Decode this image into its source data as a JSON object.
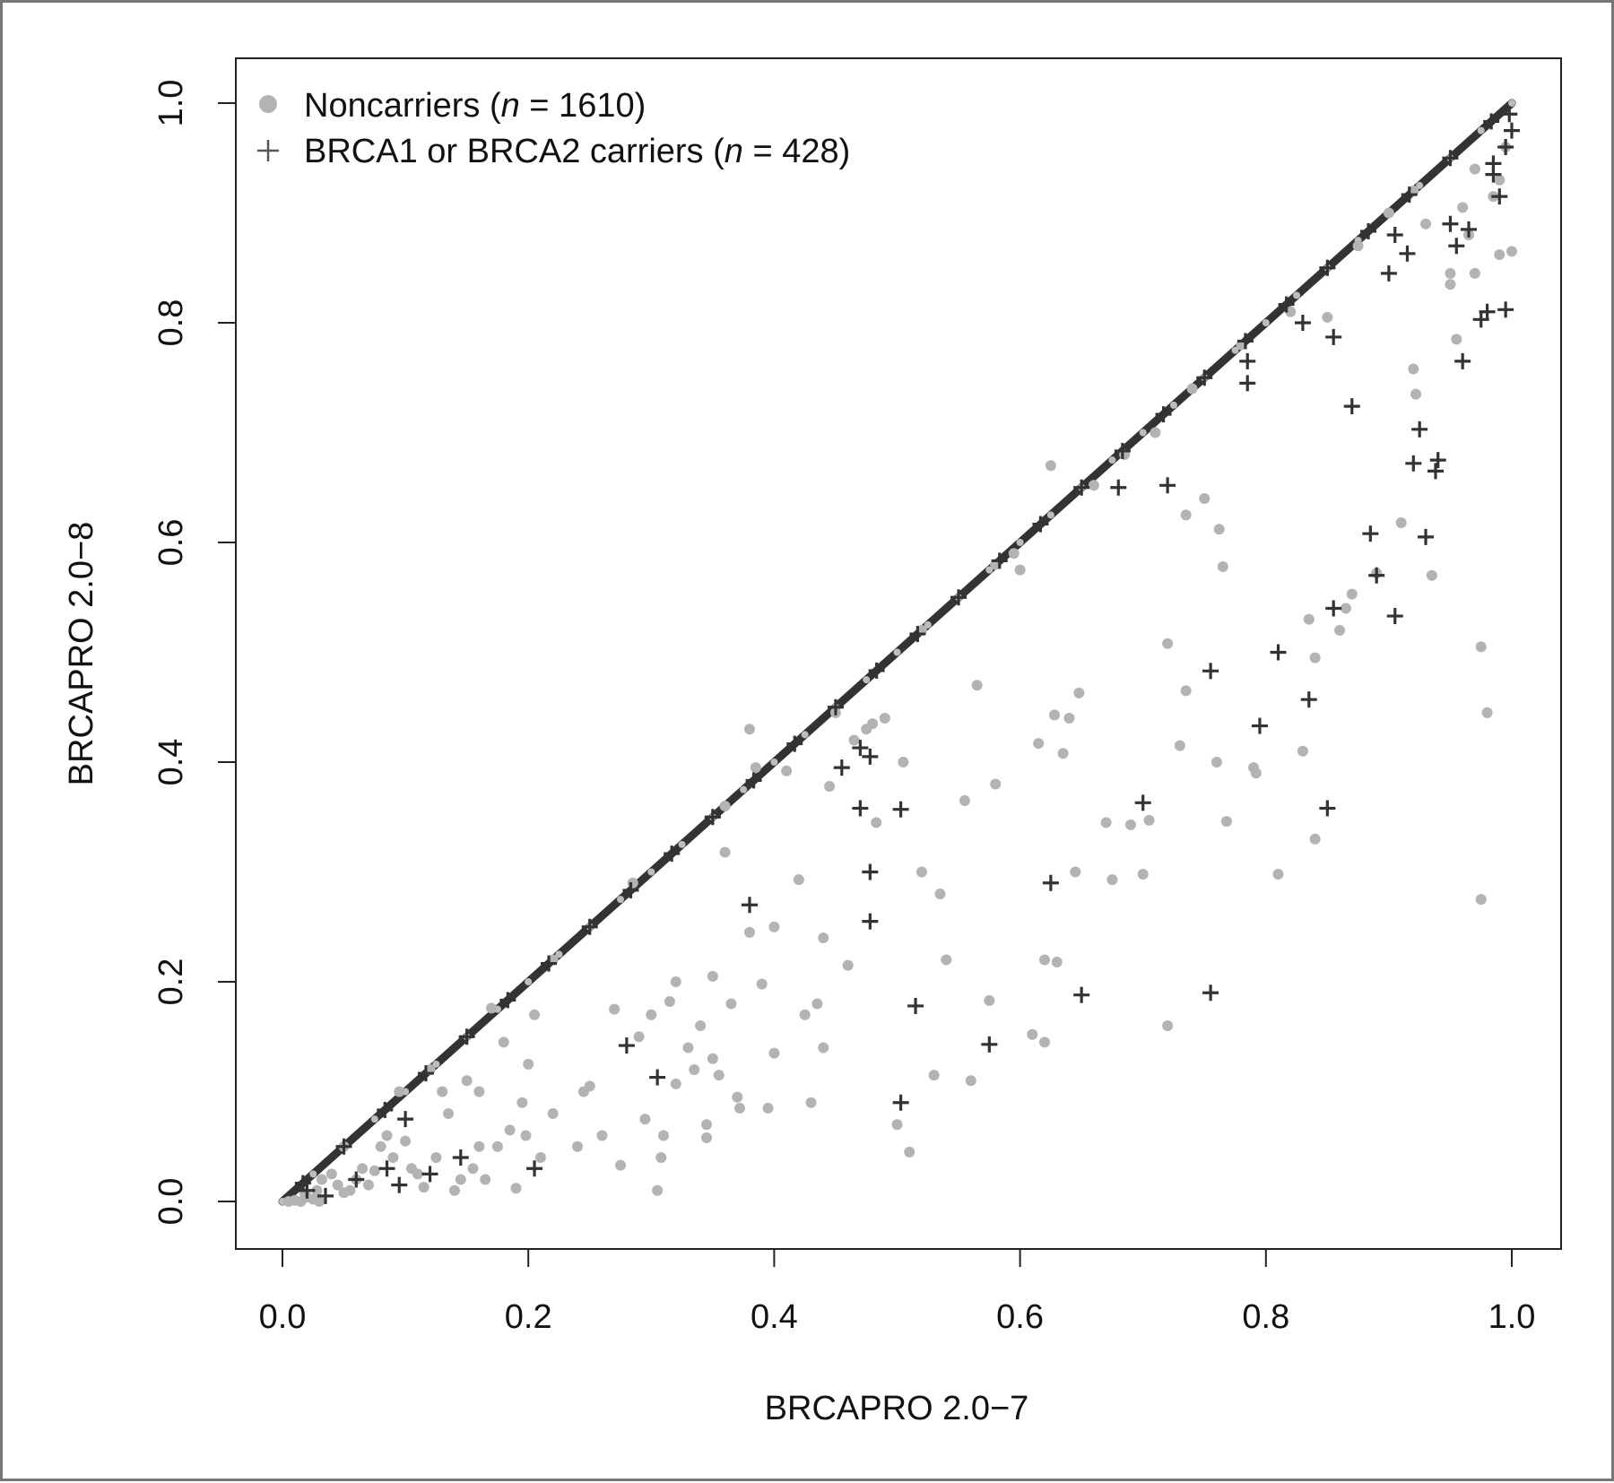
{
  "chart_data": {
    "type": "scatter",
    "xlabel": "BRCAPRO 2.0−7",
    "ylabel": "BRCAPRO 2.0−8",
    "xlim": [
      0,
      1
    ],
    "ylim": [
      0,
      1
    ],
    "x_ticks": [
      "0.0",
      "0.2",
      "0.4",
      "0.6",
      "0.8",
      "1.0"
    ],
    "y_ticks": [
      "0.0",
      "0.2",
      "0.4",
      "0.6",
      "0.8",
      "1.0"
    ],
    "grid": false,
    "legend": {
      "position": "top-left",
      "entries": [
        {
          "marker": "circle",
          "color": "#b3b3b3",
          "prefix": "Noncarriers (",
          "n_var": "n",
          "suffix": " = 1610)"
        },
        {
          "marker": "plus",
          "color": "#333333",
          "prefix": "BRCA1 or BRCA2 carriers (",
          "n_var": "n",
          "suffix": " = 428)"
        }
      ]
    },
    "series": [
      {
        "name": "Noncarriers",
        "marker": "circle",
        "color": "#b3b3b3",
        "points": [
          [
            0.005,
            0.0
          ],
          [
            0.01,
            0.001
          ],
          [
            0.015,
            0.0
          ],
          [
            0.02,
            0.004
          ],
          [
            0.025,
            0.002
          ],
          [
            0.03,
            0.0
          ],
          [
            0.018,
            0.008
          ],
          [
            0.028,
            0.01
          ],
          [
            0.032,
            0.02
          ],
          [
            0.04,
            0.025
          ],
          [
            0.045,
            0.015
          ],
          [
            0.05,
            0.008
          ],
          [
            0.055,
            0.01
          ],
          [
            0.06,
            0.02
          ],
          [
            0.065,
            0.03
          ],
          [
            0.07,
            0.015
          ],
          [
            0.075,
            0.028
          ],
          [
            0.08,
            0.05
          ],
          [
            0.085,
            0.06
          ],
          [
            0.09,
            0.04
          ],
          [
            0.095,
            0.1
          ],
          [
            0.1,
            0.055
          ],
          [
            0.105,
            0.03
          ],
          [
            0.11,
            0.025
          ],
          [
            0.115,
            0.013
          ],
          [
            0.12,
            0.12
          ],
          [
            0.125,
            0.04
          ],
          [
            0.13,
            0.1
          ],
          [
            0.135,
            0.08
          ],
          [
            0.14,
            0.01
          ],
          [
            0.145,
            0.02
          ],
          [
            0.15,
            0.11
          ],
          [
            0.155,
            0.03
          ],
          [
            0.16,
            0.1
          ],
          [
            0.165,
            0.02
          ],
          [
            0.17,
            0.176
          ],
          [
            0.175,
            0.05
          ],
          [
            0.18,
            0.145
          ],
          [
            0.185,
            0.065
          ],
          [
            0.19,
            0.012
          ],
          [
            0.195,
            0.09
          ],
          [
            0.198,
            0.06
          ],
          [
            0.2,
            0.125
          ],
          [
            0.205,
            0.17
          ],
          [
            0.21,
            0.04
          ],
          [
            0.22,
            0.08
          ],
          [
            0.24,
            0.05
          ],
          [
            0.245,
            0.1
          ],
          [
            0.25,
            0.105
          ],
          [
            0.26,
            0.06
          ],
          [
            0.27,
            0.175
          ],
          [
            0.275,
            0.033
          ],
          [
            0.285,
            0.29
          ],
          [
            0.29,
            0.15
          ],
          [
            0.295,
            0.075
          ],
          [
            0.3,
            0.17
          ],
          [
            0.305,
            0.01
          ],
          [
            0.308,
            0.04
          ],
          [
            0.31,
            0.06
          ],
          [
            0.315,
            0.182
          ],
          [
            0.32,
            0.107
          ],
          [
            0.33,
            0.14
          ],
          [
            0.335,
            0.12
          ],
          [
            0.34,
            0.16
          ],
          [
            0.345,
            0.07
          ],
          [
            0.345,
            0.058
          ],
          [
            0.35,
            0.13
          ],
          [
            0.35,
            0.205
          ],
          [
            0.355,
            0.115
          ],
          [
            0.36,
            0.318
          ],
          [
            0.365,
            0.18
          ],
          [
            0.37,
            0.095
          ],
          [
            0.372,
            0.085
          ],
          [
            0.38,
            0.245
          ],
          [
            0.38,
            0.43
          ],
          [
            0.385,
            0.395
          ],
          [
            0.39,
            0.198
          ],
          [
            0.395,
            0.085
          ],
          [
            0.4,
            0.25
          ],
          [
            0.4,
            0.135
          ],
          [
            0.41,
            0.392
          ],
          [
            0.42,
            0.293
          ],
          [
            0.425,
            0.17
          ],
          [
            0.43,
            0.09
          ],
          [
            0.435,
            0.18
          ],
          [
            0.44,
            0.24
          ],
          [
            0.44,
            0.14
          ],
          [
            0.445,
            0.378
          ],
          [
            0.45,
            0.445
          ],
          [
            0.46,
            0.215
          ],
          [
            0.465,
            0.42
          ],
          [
            0.475,
            0.43
          ],
          [
            0.48,
            0.435
          ],
          [
            0.483,
            0.345
          ],
          [
            0.49,
            0.44
          ],
          [
            0.5,
            0.07
          ],
          [
            0.505,
            0.4
          ],
          [
            0.51,
            0.045
          ],
          [
            0.52,
            0.3
          ],
          [
            0.53,
            0.115
          ],
          [
            0.535,
            0.28
          ],
          [
            0.54,
            0.22
          ],
          [
            0.555,
            0.365
          ],
          [
            0.56,
            0.11
          ],
          [
            0.565,
            0.47
          ],
          [
            0.575,
            0.183
          ],
          [
            0.58,
            0.38
          ],
          [
            0.595,
            0.59
          ],
          [
            0.6,
            0.575
          ],
          [
            0.61,
            0.152
          ],
          [
            0.615,
            0.417
          ],
          [
            0.62,
            0.22
          ],
          [
            0.62,
            0.145
          ],
          [
            0.625,
            0.67
          ],
          [
            0.628,
            0.443
          ],
          [
            0.63,
            0.218
          ],
          [
            0.635,
            0.408
          ],
          [
            0.64,
            0.44
          ],
          [
            0.645,
            0.3
          ],
          [
            0.648,
            0.463
          ],
          [
            0.66,
            0.652
          ],
          [
            0.67,
            0.345
          ],
          [
            0.675,
            0.293
          ],
          [
            0.685,
            0.68
          ],
          [
            0.69,
            0.343
          ],
          [
            0.7,
            0.298
          ],
          [
            0.705,
            0.347
          ],
          [
            0.71,
            0.7
          ],
          [
            0.72,
            0.508
          ],
          [
            0.72,
            0.16
          ],
          [
            0.73,
            0.415
          ],
          [
            0.735,
            0.625
          ],
          [
            0.735,
            0.465
          ],
          [
            0.75,
            0.64
          ],
          [
            0.76,
            0.4
          ],
          [
            0.762,
            0.612
          ],
          [
            0.765,
            0.578
          ],
          [
            0.768,
            0.346
          ],
          [
            0.78,
            0.78
          ],
          [
            0.79,
            0.395
          ],
          [
            0.792,
            0.39
          ],
          [
            0.81,
            0.298
          ],
          [
            0.82,
            0.81
          ],
          [
            0.83,
            0.41
          ],
          [
            0.835,
            0.53
          ],
          [
            0.84,
            0.33
          ],
          [
            0.84,
            0.495
          ],
          [
            0.85,
            0.805
          ],
          [
            0.86,
            0.52
          ],
          [
            0.865,
            0.54
          ],
          [
            0.87,
            0.553
          ],
          [
            0.875,
            0.87
          ],
          [
            0.89,
            0.572
          ],
          [
            0.9,
            0.9
          ],
          [
            0.91,
            0.618
          ],
          [
            0.92,
            0.758
          ],
          [
            0.922,
            0.735
          ],
          [
            0.93,
            0.89
          ],
          [
            0.935,
            0.57
          ],
          [
            0.95,
            0.835
          ],
          [
            0.95,
            0.845
          ],
          [
            0.955,
            0.785
          ],
          [
            0.96,
            0.905
          ],
          [
            0.965,
            0.88
          ],
          [
            0.97,
            0.845
          ],
          [
            0.975,
            0.275
          ],
          [
            0.975,
            0.505
          ],
          [
            0.98,
            0.445
          ],
          [
            0.985,
            0.915
          ],
          [
            0.99,
            0.93
          ],
          [
            0.99,
            0.862
          ],
          [
            0.995,
            0.96
          ],
          [
            1.0,
            0.865
          ],
          [
            0.92,
            0.92
          ],
          [
            0.97,
            0.94
          ],
          [
            0.16,
            0.05
          ],
          [
            0.32,
            0.2
          ],
          [
            0.52,
            0.52
          ],
          [
            0.74,
            0.74
          ],
          [
            0.36,
            0.36
          ],
          [
            0.58,
            0.58
          ],
          [
            0.05,
            0.05
          ],
          [
            0.12,
            0.12
          ],
          [
            0.22,
            0.22
          ]
        ]
      },
      {
        "name": "BRCA1 or BRCA2 carriers",
        "marker": "plus",
        "color": "#333333",
        "points": [
          [
            0.02,
            0.01
          ],
          [
            0.035,
            0.005
          ],
          [
            0.06,
            0.02
          ],
          [
            0.085,
            0.03
          ],
          [
            0.095,
            0.015
          ],
          [
            0.1,
            0.075
          ],
          [
            0.12,
            0.025
          ],
          [
            0.145,
            0.04
          ],
          [
            0.205,
            0.03
          ],
          [
            0.28,
            0.142
          ],
          [
            0.305,
            0.113
          ],
          [
            0.38,
            0.27
          ],
          [
            0.455,
            0.395
          ],
          [
            0.47,
            0.413
          ],
          [
            0.47,
            0.358
          ],
          [
            0.478,
            0.405
          ],
          [
            0.478,
            0.3
          ],
          [
            0.478,
            0.255
          ],
          [
            0.503,
            0.357
          ],
          [
            0.503,
            0.09
          ],
          [
            0.515,
            0.178
          ],
          [
            0.575,
            0.143
          ],
          [
            0.625,
            0.29
          ],
          [
            0.65,
            0.188
          ],
          [
            0.68,
            0.65
          ],
          [
            0.7,
            0.363
          ],
          [
            0.72,
            0.652
          ],
          [
            0.755,
            0.19
          ],
          [
            0.755,
            0.483
          ],
          [
            0.785,
            0.765
          ],
          [
            0.785,
            0.745
          ],
          [
            0.795,
            0.433
          ],
          [
            0.81,
            0.5
          ],
          [
            0.83,
            0.8
          ],
          [
            0.835,
            0.457
          ],
          [
            0.85,
            0.358
          ],
          [
            0.855,
            0.787
          ],
          [
            0.855,
            0.54
          ],
          [
            0.87,
            0.724
          ],
          [
            0.885,
            0.608
          ],
          [
            0.89,
            0.57
          ],
          [
            0.9,
            0.845
          ],
          [
            0.905,
            0.533
          ],
          [
            0.905,
            0.88
          ],
          [
            0.915,
            0.863
          ],
          [
            0.92,
            0.672
          ],
          [
            0.925,
            0.703
          ],
          [
            0.93,
            0.605
          ],
          [
            0.938,
            0.665
          ],
          [
            0.94,
            0.675
          ],
          [
            0.95,
            0.89
          ],
          [
            0.955,
            0.87
          ],
          [
            0.96,
            0.765
          ],
          [
            0.965,
            0.885
          ],
          [
            0.975,
            0.803
          ],
          [
            0.98,
            0.81
          ],
          [
            0.985,
            0.935
          ],
          [
            0.99,
            0.915
          ],
          [
            0.995,
            0.812
          ],
          [
            1.0,
            0.975
          ],
          [
            0.998,
            0.99
          ],
          [
            0.995,
            0.96
          ],
          [
            0.985,
            0.945
          ]
        ]
      }
    ],
    "diagonal_band": {
      "from": 0,
      "to": 1,
      "color": "#333333"
    }
  }
}
